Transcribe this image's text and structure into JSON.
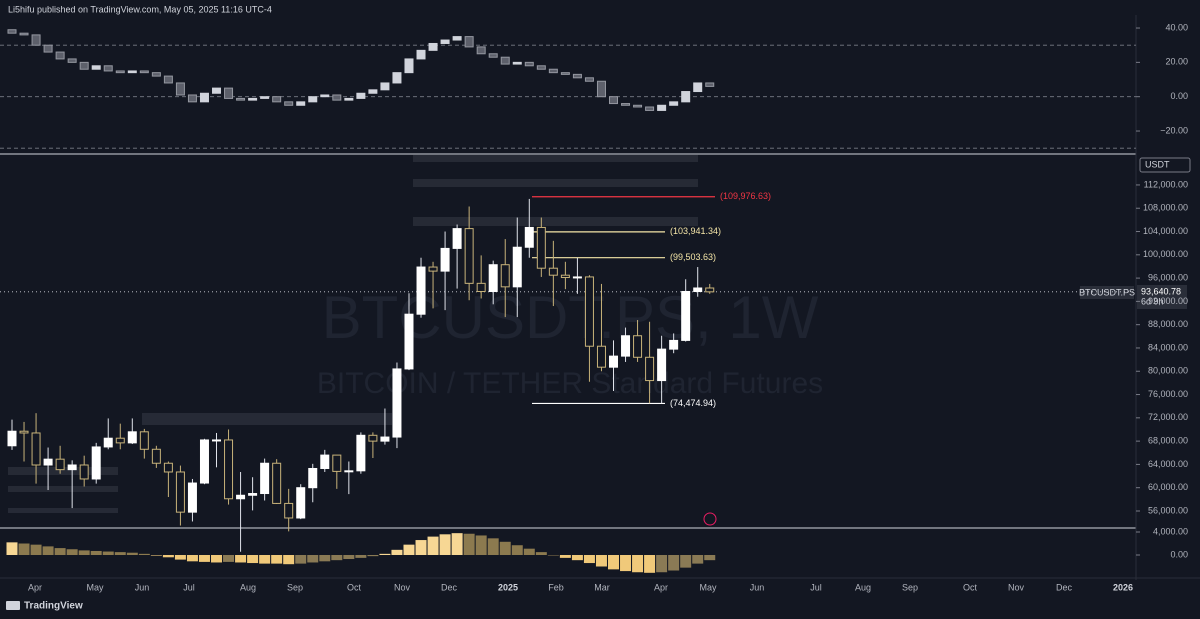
{
  "header": "Li5hifu published on TradingView.com, May 05, 2025 11:16 UTC-4",
  "watermark": {
    "symbol": "BTCUSDT.PS, 1W",
    "description": "BITCOIN / TETHER Standard Futures"
  },
  "footer": "TradingView",
  "time_labels": [
    "Apr",
    "May",
    "Jun",
    "Jul",
    "Aug",
    "Sep",
    "Oct",
    "Nov",
    "Dec",
    "2025",
    "Feb",
    "Mar",
    "Apr",
    "May",
    "Jun",
    "Jul",
    "Aug",
    "Sep",
    "Oct",
    "Nov",
    "Dec",
    "2026"
  ],
  "chart_data": [
    {
      "type": "candlestick",
      "ylim": [
        -32.8,
        50.5
      ],
      "yticks": [
        {
          "value": 40,
          "label": "40.00"
        },
        {
          "value": 20,
          "label": "20.00"
        },
        {
          "value": 0,
          "label": "0.00"
        },
        {
          "value": -20,
          "label": "−20.00"
        }
      ],
      "hlines": [
        30,
        0,
        -30
      ],
      "open": [
        39,
        37,
        36,
        30,
        26,
        22,
        20,
        16,
        18,
        15,
        14,
        15,
        14,
        12,
        8,
        1,
        -3,
        2,
        5,
        -1,
        -2,
        -1,
        0,
        -3,
        -5,
        -3,
        0,
        1,
        -2,
        -1,
        2,
        4,
        8,
        14,
        22,
        27,
        31,
        33,
        35,
        29,
        25,
        23,
        19,
        20,
        18,
        16,
        14,
        13,
        11,
        9,
        0,
        -4,
        -5,
        -6,
        -8,
        -5,
        -3,
        3,
        8
      ],
      "close": [
        37,
        36,
        30,
        26,
        22,
        20,
        16,
        18,
        15,
        14,
        15,
        14,
        12,
        8,
        1,
        -3,
        2,
        5,
        -1,
        -2,
        -1,
        0,
        -3,
        -5,
        -3,
        0,
        1,
        -2,
        -1,
        2,
        4,
        8,
        14,
        22,
        27,
        31,
        33,
        35,
        29,
        25,
        23,
        19,
        20,
        18,
        16,
        14,
        13,
        11,
        9,
        0,
        -4,
        -5,
        -6,
        -8,
        -5,
        -3,
        3,
        8,
        6
      ]
    },
    {
      "type": "candlestick",
      "currency": "USDT",
      "symbol": "BTCUSDT.PS",
      "countdown": "6d 9h",
      "last_close_label": "93,640.78",
      "ylim": [
        53250,
        116800
      ],
      "yticks": [
        {
          "value": 112000,
          "label": "112,000.00"
        },
        {
          "value": 108000,
          "label": "108,000.00"
        },
        {
          "value": 104000,
          "label": "104,000.00"
        },
        {
          "value": 100000,
          "label": "100,000.00"
        },
        {
          "value": 96000,
          "label": "96,000.00"
        },
        {
          "value": 92000,
          "label": "92,000.00"
        },
        {
          "value": 88000,
          "label": "88,000.00"
        },
        {
          "value": 84000,
          "label": "84,000.00"
        },
        {
          "value": 80000,
          "label": "80,000.00"
        },
        {
          "value": 76000,
          "label": "76,000.00"
        },
        {
          "value": 72000,
          "label": "72,000.00"
        },
        {
          "value": 68000,
          "label": "68,000.00"
        },
        {
          "value": 64000,
          "label": "64,000.00"
        },
        {
          "value": 60000,
          "label": "60,000.00"
        },
        {
          "value": 56000,
          "label": "56,000.00"
        }
      ],
      "levels": [
        {
          "value": 109976.63,
          "label": "(109,976.63)",
          "color": "#f23645"
        },
        {
          "value": 103941.34,
          "label": "(103,941.34)",
          "color": "#f5e6a8"
        },
        {
          "value": 99503.63,
          "label": "(99,503.63)",
          "color": "#f5e6a8"
        },
        {
          "value": 74474.94,
          "label": "(74,474.94)",
          "color": "#ffffff"
        }
      ],
      "open": [
        67200,
        69700,
        69400,
        63900,
        64900,
        63100,
        63900,
        61500,
        67000,
        68500,
        67700,
        69600,
        66600,
        64200,
        62700,
        55800,
        60800,
        68200,
        68200,
        58100,
        58700,
        59000,
        64200,
        57300,
        54800,
        60000,
        63300,
        65600,
        62800,
        62900,
        69000,
        68000,
        68700,
        80400,
        89800,
        97900,
        97200,
        101100,
        104500,
        95100,
        93700,
        98300,
        94500,
        101300,
        104700,
        97700,
        96500,
        96100,
        96200,
        84300,
        80700,
        82600,
        86100,
        82400,
        78400,
        83800,
        85300,
        93700,
        94300
      ],
      "high": [
        71700,
        71300,
        72800,
        66900,
        67200,
        64700,
        65500,
        67700,
        71900,
        71000,
        71900,
        70100,
        67200,
        64500,
        63800,
        61500,
        68400,
        69400,
        70000,
        62700,
        61800,
        65000,
        64900,
        59800,
        60600,
        64100,
        66500,
        65600,
        64500,
        69500,
        69500,
        73600,
        81500,
        93400,
        99500,
        98800,
        104000,
        105200,
        108300,
        99900,
        99000,
        102700,
        106400,
        109600,
        106400,
        102400,
        98800,
        99500,
        96500,
        95000,
        85300,
        87500,
        88800,
        88500,
        86100,
        86500,
        95800,
        97900,
        95000
      ],
      "low": [
        66500,
        64500,
        60700,
        59600,
        62400,
        56500,
        60200,
        60700,
        66600,
        66600,
        67500,
        65000,
        63400,
        58400,
        53500,
        54200,
        60600,
        63500,
        57100,
        49000,
        56100,
        57800,
        57200,
        52500,
        54600,
        57500,
        62700,
        59800,
        58900,
        62400,
        65100,
        67400,
        66800,
        80200,
        89200,
        90800,
        90500,
        94200,
        92200,
        92500,
        91500,
        89300,
        89300,
        99500,
        96200,
        91200,
        94100,
        93300,
        78200,
        80000,
        76600,
        81600,
        81600,
        74500,
        74500,
        83100,
        85100,
        92800,
        93300
      ],
      "close": [
        69700,
        69400,
        63900,
        64900,
        63100,
        63900,
        61500,
        67000,
        68500,
        67700,
        69600,
        66600,
        64200,
        62700,
        55800,
        60800,
        68200,
        68200,
        58100,
        58700,
        59000,
        64200,
        57300,
        54800,
        60000,
        63300,
        65600,
        62800,
        62900,
        69000,
        68000,
        68700,
        80400,
        89800,
        97900,
        97200,
        101100,
        104500,
        95100,
        93700,
        98300,
        94500,
        101300,
        104700,
        97700,
        96500,
        96100,
        96200,
        84300,
        80700,
        82600,
        86100,
        82400,
        78400,
        83800,
        85300,
        93700,
        94300,
        93640.78
      ]
    },
    {
      "type": "bar",
      "ylim": [
        -3480,
        4350
      ],
      "yticks": [
        {
          "value": 4000,
          "label": "4,000.00"
        },
        {
          "value": 0,
          "label": "0.00"
        }
      ],
      "values": [
        2200,
        2000,
        1800,
        1500,
        1200,
        1000,
        800,
        700,
        600,
        500,
        400,
        200,
        -100,
        -400,
        -800,
        -1100,
        -1200,
        -1300,
        -1200,
        -1300,
        -1400,
        -1500,
        -1500,
        -1600,
        -1500,
        -1300,
        -1100,
        -900,
        -700,
        -500,
        -200,
        200,
        900,
        1800,
        2600,
        3200,
        3600,
        3800,
        3700,
        3400,
        2900,
        2300,
        1700,
        1100,
        500,
        0,
        -500,
        -900,
        -1400,
        -2000,
        -2500,
        -2800,
        -3000,
        -3100,
        -3000,
        -2700,
        -2200,
        -1500,
        -900
      ]
    }
  ]
}
